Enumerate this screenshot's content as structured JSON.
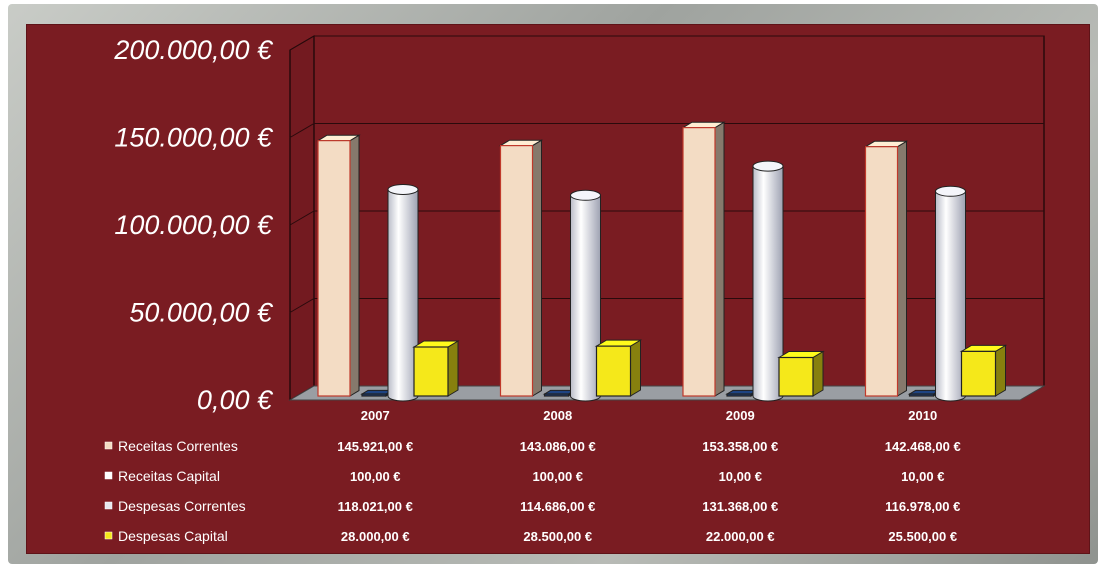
{
  "chart_data": {
    "type": "bar",
    "categories": [
      "2007",
      "2008",
      "2009",
      "2010"
    ],
    "series": [
      {
        "name": "Receitas Correntes",
        "values": [
          145921,
          143086,
          153358,
          142468
        ],
        "labels": [
          "145.921,00 €",
          "143.086,00 €",
          "153.358,00 €",
          "142.468,00 €"
        ],
        "color": "#f3dcc4",
        "shape": "box"
      },
      {
        "name": "Receitas Capital",
        "values": [
          100,
          100,
          10,
          10
        ],
        "labels": [
          "100,00 €",
          "100,00 €",
          "10,00 €",
          "10,00 €"
        ],
        "color": "#1c3f78",
        "shape": "box"
      },
      {
        "name": "Despesas Correntes",
        "values": [
          118021,
          114686,
          131368,
          116978
        ],
        "labels": [
          "118.021,00 €",
          "114.686,00 €",
          "131.368,00 €",
          "116.978,00 €"
        ],
        "color": "#e6e8ef",
        "shape": "cylinder"
      },
      {
        "name": "Despesas Capital",
        "values": [
          28000,
          28500,
          22000,
          25500
        ],
        "labels": [
          "28.000,00 €",
          "28.500,00 €",
          "22.000,00 €",
          "25.500,00 €"
        ],
        "color": "#f5e81a",
        "shape": "box"
      }
    ],
    "y_tick_values": [
      0,
      50000,
      100000,
      150000,
      200000
    ],
    "y_tick_labels": [
      "0,00 €",
      "50.000,00 €",
      "100.000,00 €",
      "150.000,00 €",
      "200.000,00 €"
    ],
    "ylim": [
      0,
      200000
    ],
    "grid": true,
    "legend": "data-table-below",
    "background": "#7a1c22"
  }
}
